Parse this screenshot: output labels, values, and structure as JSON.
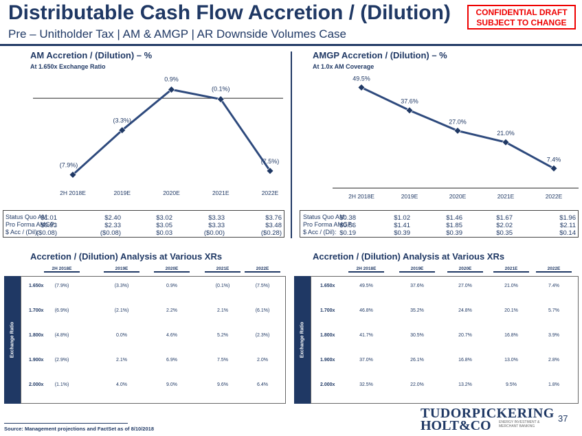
{
  "header": {
    "title": "Distributable Cash Flow Accretion / (Dilution)",
    "subtitle": "Pre – Unitholder Tax | AM & AMGP | AR Downside Volumes Case",
    "confidential_line1": "CONFIDENTIAL DRAFT",
    "confidential_line2": "SUBJECT TO CHANGE"
  },
  "chart_data": [
    {
      "type": "line",
      "title": "AM Accretion / (Dilution) – %",
      "subtitle": "At 1.650x Exchange Ratio",
      "categories": [
        "2H 2018E",
        "2019E",
        "2020E",
        "2021E",
        "2022E"
      ],
      "values": [
        -7.9,
        -3.3,
        0.9,
        -0.1,
        -7.5
      ],
      "labels": [
        "(7.9%)",
        "(3.3%)",
        "0.9%",
        "(0.1%)",
        "(7.5%)"
      ],
      "ylim": [
        -9,
        1.5
      ],
      "color": "#2e4a7d"
    },
    {
      "type": "line",
      "title": "AMGP Accretion / (Dilution) – %",
      "subtitle": "At 1.0x AM Coverage",
      "categories": [
        "2H 2018E",
        "2019E",
        "2020E",
        "2021E",
        "2022E"
      ],
      "values": [
        49.5,
        37.6,
        27.0,
        21.0,
        7.4
      ],
      "labels": [
        "49.5%",
        "37.6%",
        "27.0%",
        "21.0%",
        "7.4%"
      ],
      "ylim": [
        0,
        55
      ],
      "color": "#2e4a7d"
    }
  ],
  "am_box": {
    "labels": [
      "Status Quo AM:",
      "Pro Forma AMGP:",
      "$ Acc / (Dil):"
    ],
    "columns": [
      [
        "$1.01",
        "$0.93",
        "($0.08)"
      ],
      [
        "$2.40",
        "$2.33",
        "($0.08)"
      ],
      [
        "$3.02",
        "$3.05",
        "$0.03"
      ],
      [
        "$3.33",
        "$3.33",
        "($0.00)"
      ],
      [
        "$3.76",
        "$3.48",
        "($0.28)"
      ]
    ]
  },
  "amgp_box": {
    "labels": [
      "Status Quo AM:",
      "Pro Forma AMGP:",
      "$ Acc / (Dil):"
    ],
    "columns": [
      [
        "$0.38",
        "$0.56",
        "$0.19"
      ],
      [
        "$1.02",
        "$1.41",
        "$0.39"
      ],
      [
        "$1.46",
        "$1.85",
        "$0.39"
      ],
      [
        "$1.67",
        "$2.02",
        "$0.35"
      ],
      [
        "$1.96",
        "$2.11",
        "$0.14"
      ]
    ]
  },
  "am_table": {
    "title": "Accretion / (Dilution) Analysis at Various XRs",
    "side_label": "Exchange Ratio",
    "headers": [
      "2H 2018E",
      "2019E",
      "2020E",
      "2021E",
      "2022E"
    ],
    "rows": [
      {
        "label": "1.650x",
        "values": [
          "(7.9%)",
          "(3.3%)",
          "0.9%",
          "(0.1%)",
          "(7.5%)"
        ]
      },
      {
        "label": "1.700x",
        "values": [
          "(6.9%)",
          "(2.1%)",
          "2.2%",
          "2.1%",
          "(6.1%)"
        ]
      },
      {
        "label": "1.800x",
        "values": [
          "(4.8%)",
          "0.0%",
          "4.6%",
          "5.2%",
          "(2.3%)"
        ]
      },
      {
        "label": "1.900x",
        "values": [
          "(2.9%)",
          "2.1%",
          "6.9%",
          "7.5%",
          "2.0%"
        ]
      },
      {
        "label": "2.000x",
        "values": [
          "(1.1%)",
          "4.0%",
          "9.0%",
          "9.6%",
          "6.4%"
        ]
      }
    ]
  },
  "amgp_table": {
    "title": "Accretion / (Dilution) Analysis at Various XRs",
    "side_label": "Exchange Ratio",
    "headers": [
      "2H 2018E",
      "2019E",
      "2020E",
      "2021E",
      "2022E"
    ],
    "rows": [
      {
        "label": "1.650x",
        "values": [
          "49.5%",
          "37.6%",
          "27.0%",
          "21.0%",
          "7.4%"
        ]
      },
      {
        "label": "1.700x",
        "values": [
          "46.8%",
          "35.2%",
          "24.8%",
          "20.1%",
          "5.7%"
        ]
      },
      {
        "label": "1.800x",
        "values": [
          "41.7%",
          "30.5%",
          "20.7%",
          "16.8%",
          "3.9%"
        ]
      },
      {
        "label": "1.900x",
        "values": [
          "37.0%",
          "26.1%",
          "16.8%",
          "13.0%",
          "2.8%"
        ]
      },
      {
        "label": "2.000x",
        "values": [
          "32.5%",
          "22.0%",
          "13.2%",
          "9.5%",
          "1.8%"
        ]
      }
    ]
  },
  "footer": {
    "source": "Source: Management projections and FactSet as of 8/10/2018",
    "logo_line1": "TUDORPICKERING",
    "logo_line2": "HOLT&CO",
    "logo_tag1": "ENERGY INVESTMENT &",
    "logo_tag2": "MERCHANT BANKING",
    "page_number": "37"
  }
}
